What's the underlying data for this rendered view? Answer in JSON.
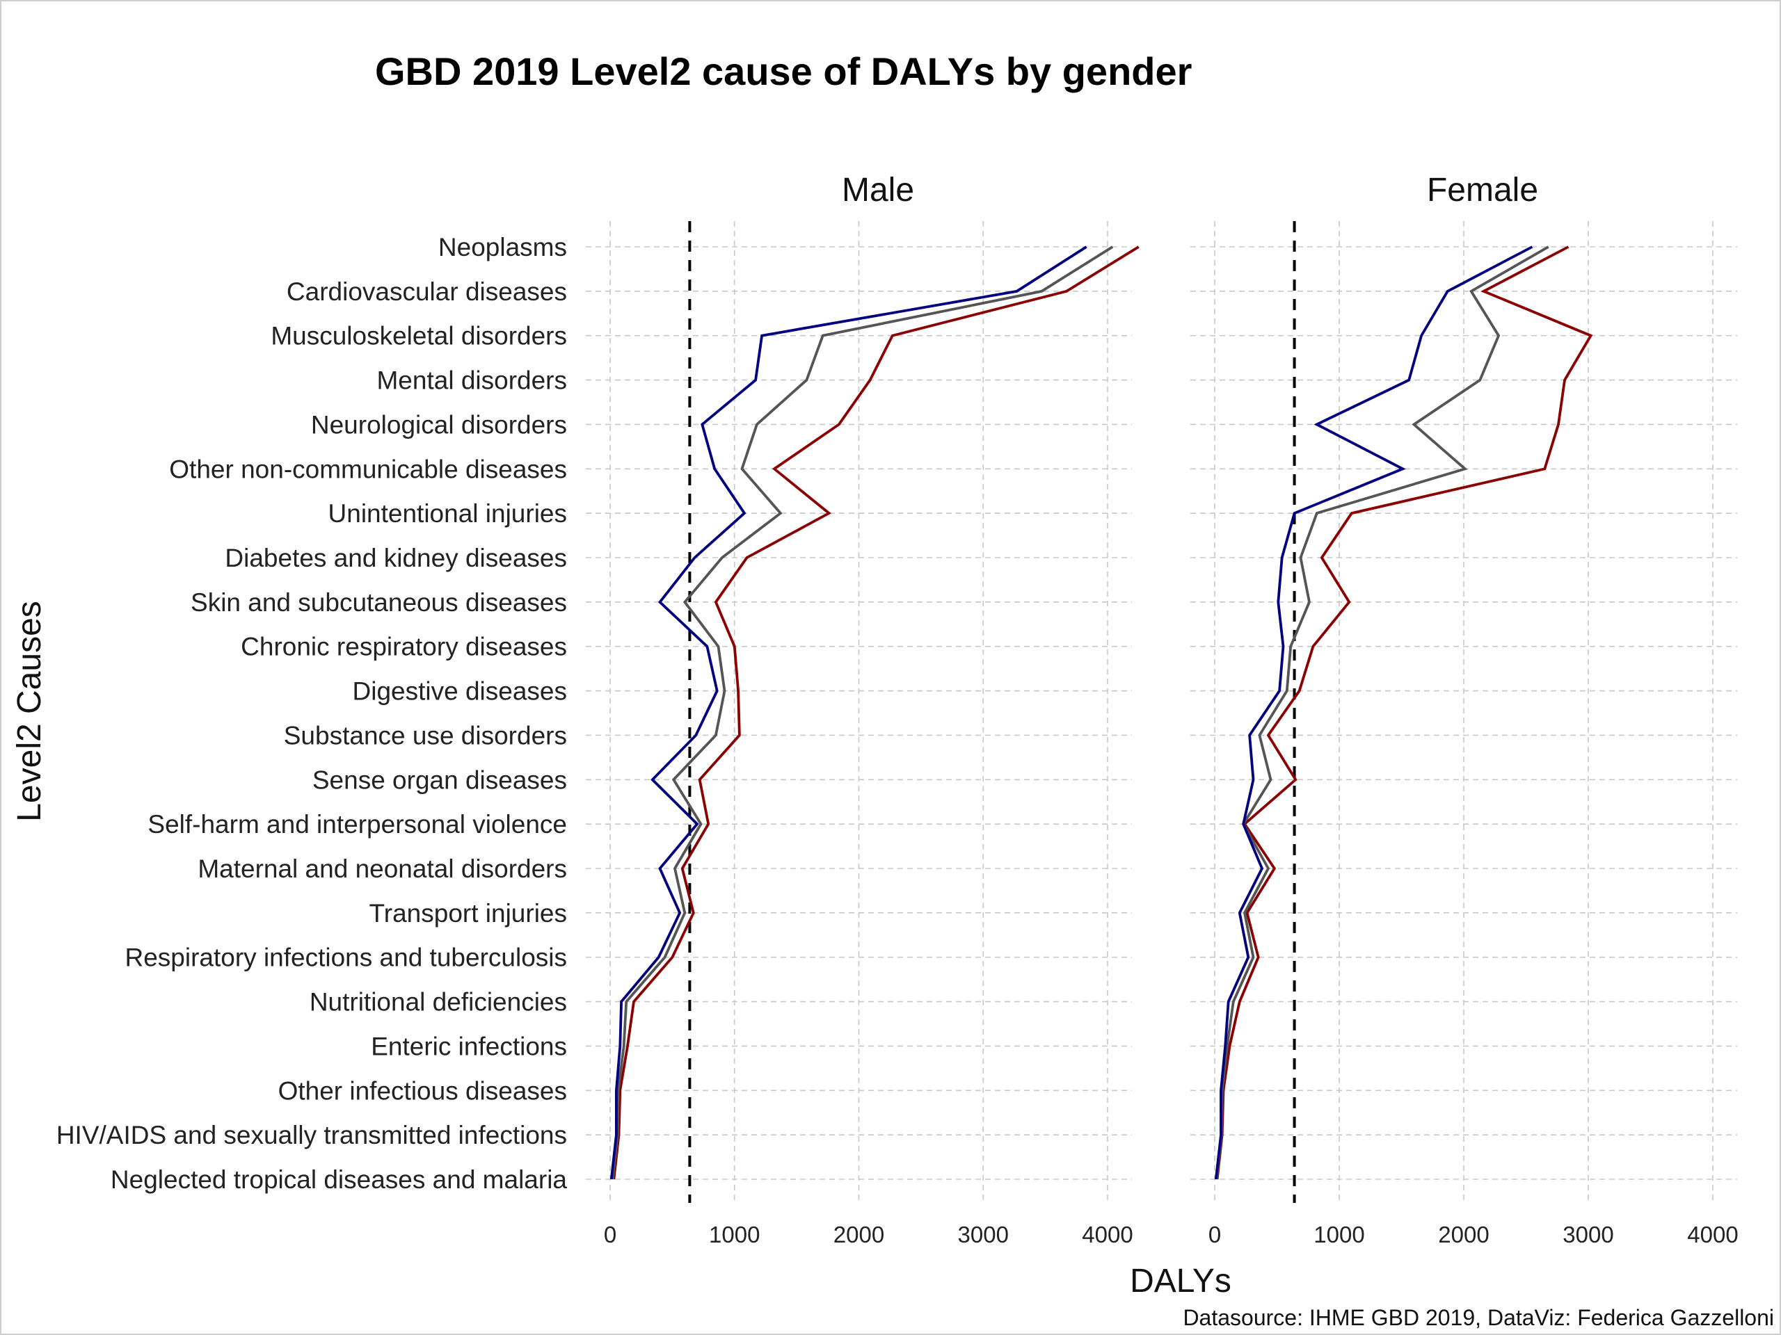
{
  "chart_data": {
    "type": "line",
    "title": "GBD 2019 Level2 cause of DALYs by gender",
    "xlabel": "DALYs",
    "ylabel": "Level2 Causes",
    "caption": "Datasource: IHME GBD 2019, DataViz: Federica Gazzelloni",
    "xlim": [
      0,
      4000
    ],
    "x_ticks": [
      "0",
      "1000",
      "2000",
      "3000",
      "4000"
    ],
    "grid": true,
    "legend": "none",
    "categories": [
      "Neoplasms",
      "Cardiovascular diseases",
      "Musculoskeletal disorders",
      "Mental disorders",
      "Neurological disorders",
      "Other non-communicable diseases",
      "Unintentional injuries",
      "Diabetes and kidney diseases",
      "Skin and subcutaneous diseases",
      "Chronic respiratory diseases",
      "Digestive diseases",
      "Substance use disorders",
      "Sense organ diseases",
      "Self-harm and interpersonal violence",
      "Maternal and neonatal disorders",
      "Transport injuries",
      "Respiratory infections and tuberculosis",
      "Nutritional deficiencies",
      "Enteric infections",
      "Other infectious diseases",
      "HIV/AIDS and sexually transmitted infections",
      "Neglected tropical diseases and malaria"
    ],
    "panels": [
      {
        "name": "Male",
        "reference_line": 640,
        "series": [
          {
            "color": "#8b0000",
            "values": [
              4250,
              3670,
              2270,
              2090,
              1840,
              1320,
              1760,
              1100,
              850,
              1000,
              1030,
              1040,
              720,
              790,
              580,
              670,
              500,
              190,
              140,
              80,
              70,
              30
            ]
          },
          {
            "color": "#555555",
            "values": [
              4040,
              3470,
              1710,
              1580,
              1180,
              1060,
              1370,
              900,
              600,
              870,
              920,
              850,
              510,
              730,
              520,
              600,
              440,
              130,
              110,
              65,
              60,
              20
            ]
          },
          {
            "color": "#000080",
            "values": [
              3830,
              3270,
              1220,
              1170,
              740,
              840,
              1080,
              680,
              400,
              780,
              860,
              690,
              340,
              700,
              400,
              560,
              390,
              90,
              80,
              50,
              50,
              10
            ]
          }
        ]
      },
      {
        "name": "Female",
        "reference_line": 640,
        "series": [
          {
            "color": "#8b0000",
            "values": [
              2840,
              2160,
              3020,
              2810,
              2760,
              2650,
              1100,
              860,
              1080,
              790,
              680,
              430,
              650,
              240,
              480,
              260,
              350,
              200,
              120,
              70,
              60,
              20
            ]
          },
          {
            "color": "#555555",
            "values": [
              2680,
              2060,
              2280,
              2130,
              1600,
              2010,
              820,
              690,
              760,
              610,
              580,
              360,
              450,
              230,
              430,
              240,
              310,
              150,
              100,
              60,
              55,
              15
            ]
          },
          {
            "color": "#000080",
            "values": [
              2550,
              1870,
              1660,
              1560,
              820,
              1510,
              640,
              540,
              510,
              550,
              520,
              280,
              310,
              230,
              380,
              200,
              270,
              110,
              85,
              50,
              50,
              10
            ]
          }
        ]
      }
    ]
  }
}
